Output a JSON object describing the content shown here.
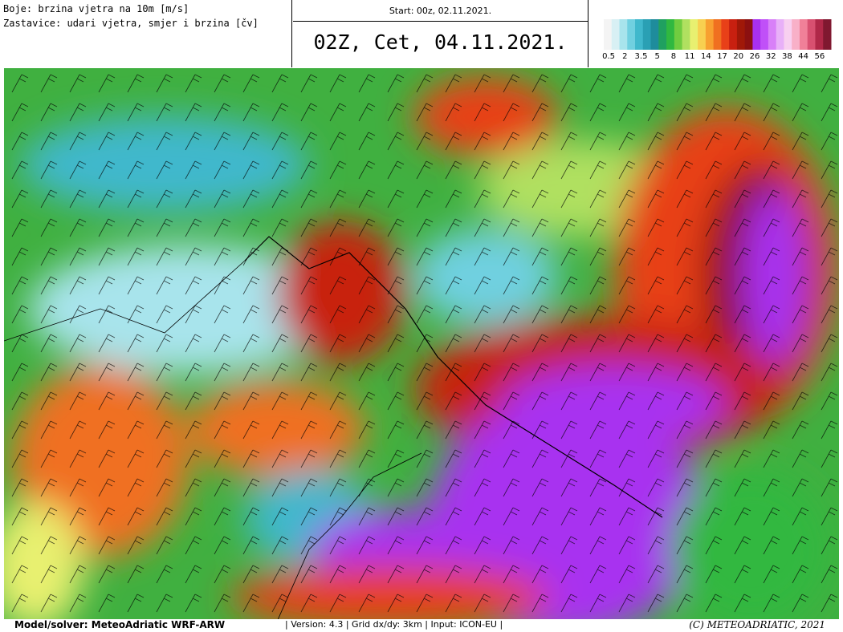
{
  "header": {
    "legend_line1": "Boje: brzina vjetra na 10m [m/s]",
    "legend_line2": "Zastavice: udari vjetra, smjer i brzina [čv]",
    "start": "Start: 00z, 02.11.2021.",
    "valid": "02Z, Cet, 04.11.2021."
  },
  "colorbar": {
    "labels": [
      "0.5",
      "2",
      "3.5",
      "5",
      "8",
      "11",
      "14",
      "17",
      "20",
      "26",
      "32",
      "38",
      "44",
      "56"
    ],
    "colors": [
      "#f4f4f4",
      "#d8f0f4",
      "#a8e4ec",
      "#70d0e0",
      "#40b8cc",
      "#2aa0b4",
      "#1e8c9c",
      "#20a060",
      "#30b840",
      "#70cc40",
      "#b0e060",
      "#e8f070",
      "#f8d050",
      "#f8a030",
      "#f07020",
      "#e84018",
      "#c82010",
      "#a01808",
      "#8c1010",
      "#a830f0",
      "#c050f8",
      "#d880f8",
      "#e8b0f8",
      "#f8d0f0",
      "#f8b0c8",
      "#f08098",
      "#d85070",
      "#b02848",
      "#801830"
    ]
  },
  "footer": {
    "model": "Model/solver: MeteoAdriatic WRF-ARW",
    "info": "| Version: 4.3 | Grid dx/dy: 3km | Input: ICON-EU |",
    "copyright": "(C) METEOADRIATIC, 2021"
  }
}
